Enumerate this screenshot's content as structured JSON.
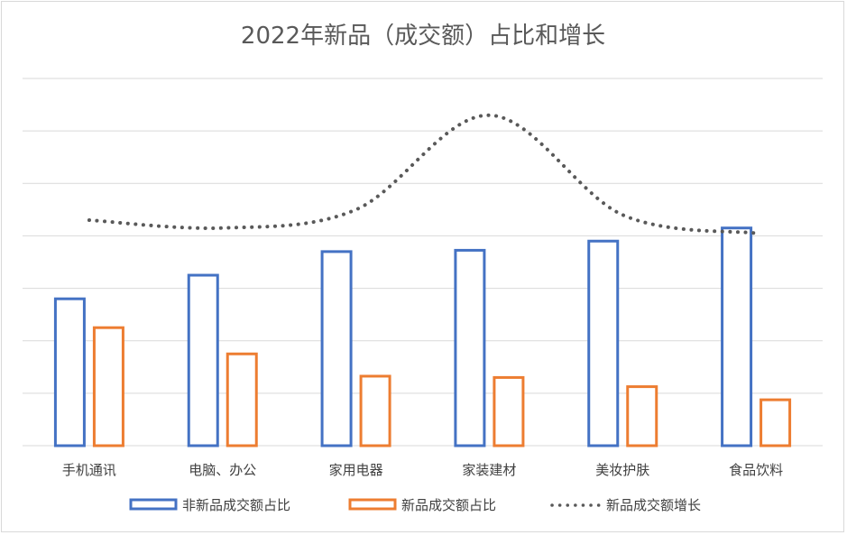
{
  "chart_data": {
    "type": "bar",
    "title": "2022年新品（成交额）占比和增长",
    "categories": [
      "手机通讯",
      "电脑、办公",
      "家用电器",
      "家装建材",
      "美妆护肤",
      "食品饮料"
    ],
    "series": [
      {
        "name": "非新品成交额占比",
        "type": "bar",
        "color": "#4472c4",
        "values": [
          56,
          65,
          74,
          74.5,
          78,
          83
        ]
      },
      {
        "name": "新品成交额占比",
        "type": "bar",
        "color": "#ed7d31",
        "values": [
          45,
          35,
          26.5,
          26,
          22.5,
          17.5
        ]
      },
      {
        "name": "新品成交额增长",
        "type": "line",
        "style": "dotted",
        "color": "#595959",
        "values": [
          86,
          83,
          90,
          126,
          88,
          81
        ]
      }
    ],
    "ylim": [
      0,
      140
    ],
    "gridlines": 7,
    "grid": true,
    "axis_labels_shown": false,
    "legend": "bottom"
  }
}
